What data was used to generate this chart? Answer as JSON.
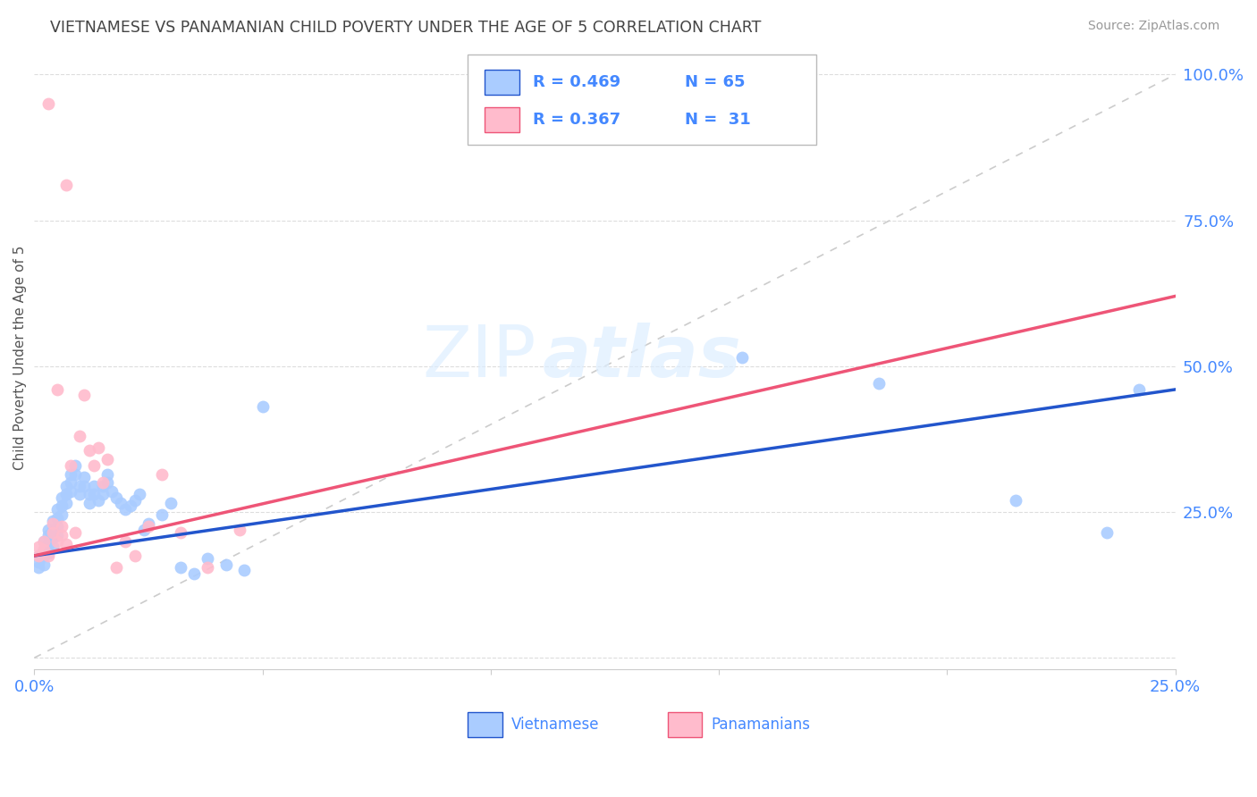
{
  "title": "VIETNAMESE VS PANAMANIAN CHILD POVERTY UNDER THE AGE OF 5 CORRELATION CHART",
  "source": "Source: ZipAtlas.com",
  "ylabel": "Child Poverty Under the Age of 5",
  "yticks": [
    0.0,
    0.25,
    0.5,
    0.75,
    1.0
  ],
  "ytick_labels": [
    "",
    "25.0%",
    "50.0%",
    "75.0%",
    "100.0%"
  ],
  "xlim": [
    0.0,
    0.25
  ],
  "ylim": [
    -0.02,
    1.05
  ],
  "title_color": "#444444",
  "source_color": "#999999",
  "axis_color": "#4488ff",
  "grid_color": "#dddddd",
  "watermark_zip": "ZIP",
  "watermark_atlas": "atlas",
  "vietnamese_color": "#aaccff",
  "panamanian_color": "#ffbbcc",
  "trendline_vietnamese_color": "#2255cc",
  "trendline_panamanian_color": "#ee5577",
  "diagonal_color": "#cccccc",
  "viet_trend_x0": 0.0,
  "viet_trend_y0": 0.175,
  "viet_trend_x1": 0.25,
  "viet_trend_y1": 0.46,
  "pan_trend_x0": 0.0,
  "pan_trend_y0": 0.175,
  "pan_trend_x1": 0.25,
  "pan_trend_y1": 0.62,
  "legend_text_color": "#333333",
  "legend_val_color": "#4488ff",
  "legend_R_viet": "0.469",
  "legend_N_viet": "65",
  "legend_R_pan": "0.367",
  "legend_N_pan": " 31",
  "vietnamese_x": [
    0.001,
    0.001,
    0.001,
    0.002,
    0.002,
    0.002,
    0.002,
    0.003,
    0.003,
    0.003,
    0.003,
    0.004,
    0.004,
    0.004,
    0.004,
    0.005,
    0.005,
    0.005,
    0.005,
    0.006,
    0.006,
    0.006,
    0.007,
    0.007,
    0.007,
    0.008,
    0.008,
    0.008,
    0.009,
    0.009,
    0.01,
    0.01,
    0.011,
    0.011,
    0.012,
    0.012,
    0.013,
    0.013,
    0.014,
    0.015,
    0.015,
    0.016,
    0.016,
    0.017,
    0.018,
    0.019,
    0.02,
    0.021,
    0.022,
    0.023,
    0.024,
    0.025,
    0.028,
    0.03,
    0.032,
    0.035,
    0.038,
    0.042,
    0.046,
    0.05,
    0.155,
    0.185,
    0.215,
    0.235,
    0.242
  ],
  "vietnamese_y": [
    0.175,
    0.165,
    0.155,
    0.2,
    0.185,
    0.175,
    0.16,
    0.22,
    0.21,
    0.195,
    0.18,
    0.235,
    0.22,
    0.205,
    0.19,
    0.255,
    0.24,
    0.225,
    0.21,
    0.275,
    0.26,
    0.245,
    0.295,
    0.28,
    0.265,
    0.315,
    0.3,
    0.285,
    0.33,
    0.315,
    0.295,
    0.28,
    0.31,
    0.295,
    0.28,
    0.265,
    0.295,
    0.28,
    0.27,
    0.295,
    0.28,
    0.315,
    0.3,
    0.285,
    0.275,
    0.265,
    0.255,
    0.26,
    0.27,
    0.28,
    0.22,
    0.23,
    0.245,
    0.265,
    0.155,
    0.145,
    0.17,
    0.16,
    0.15,
    0.43,
    0.515,
    0.47,
    0.27,
    0.215,
    0.46
  ],
  "panamanian_x": [
    0.001,
    0.001,
    0.002,
    0.002,
    0.003,
    0.003,
    0.004,
    0.004,
    0.005,
    0.005,
    0.006,
    0.006,
    0.007,
    0.007,
    0.008,
    0.009,
    0.01,
    0.011,
    0.012,
    0.013,
    0.014,
    0.015,
    0.016,
    0.018,
    0.02,
    0.022,
    0.025,
    0.028,
    0.032,
    0.038,
    0.045
  ],
  "panamanian_y": [
    0.19,
    0.175,
    0.2,
    0.185,
    0.95,
    0.175,
    0.23,
    0.215,
    0.46,
    0.2,
    0.225,
    0.21,
    0.81,
    0.195,
    0.33,
    0.215,
    0.38,
    0.45,
    0.355,
    0.33,
    0.36,
    0.3,
    0.34,
    0.155,
    0.2,
    0.175,
    0.225,
    0.315,
    0.215,
    0.155,
    0.22
  ]
}
